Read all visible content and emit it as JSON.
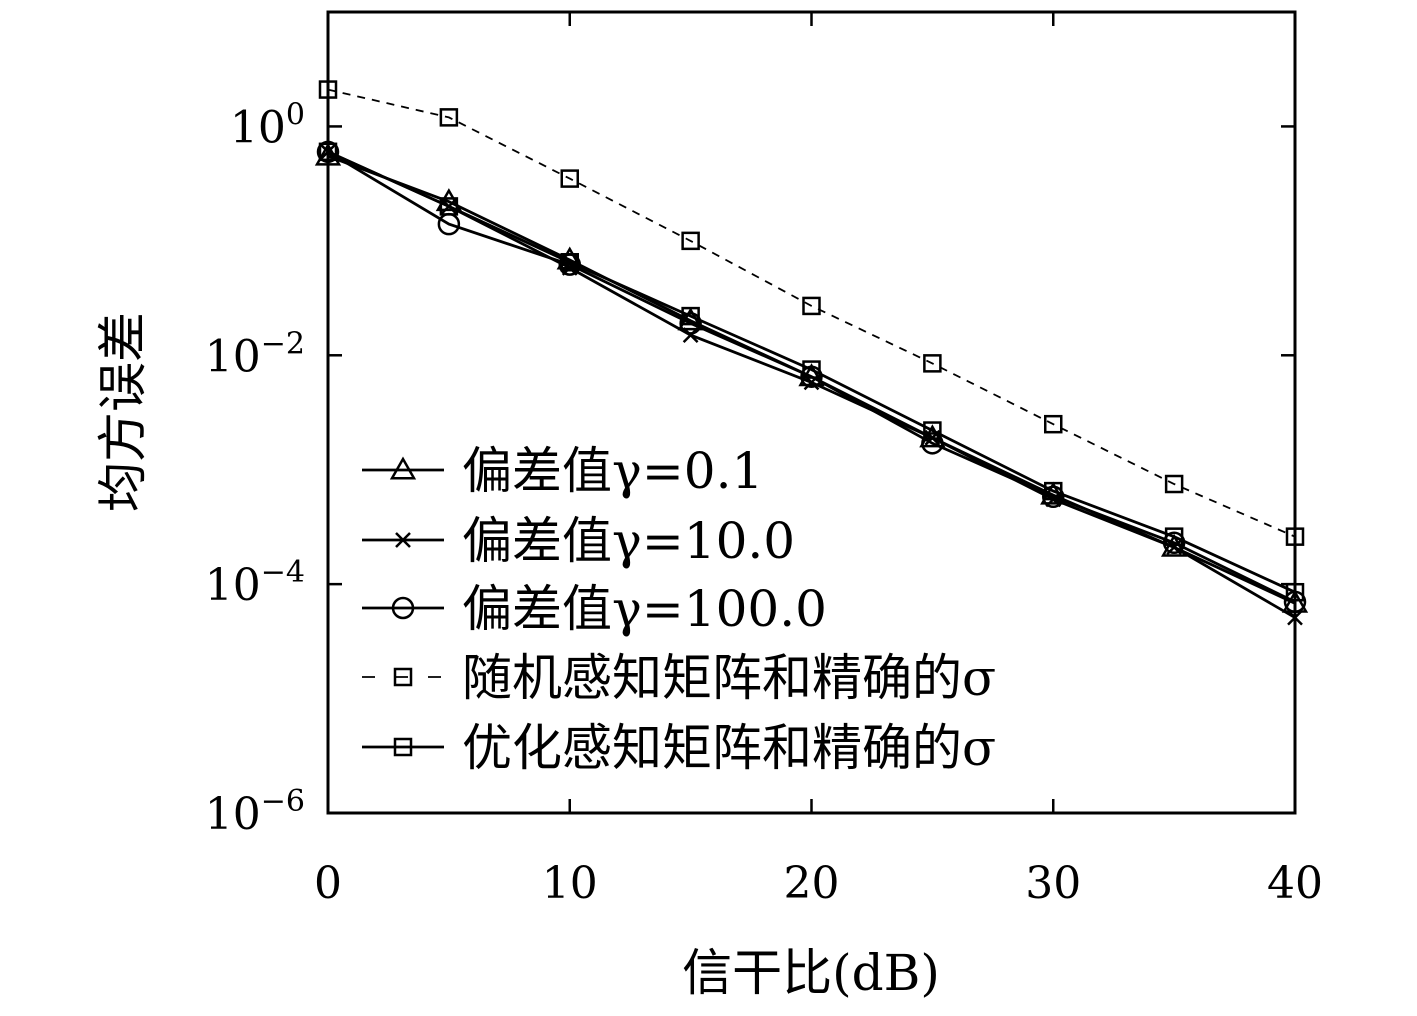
{
  "chart_data": {
    "type": "line",
    "xlabel": "信干比(dB)",
    "ylabel": "均方误差",
    "y_scale": "log",
    "xlim": [
      0,
      40
    ],
    "ylim": [
      1e-06,
      10
    ],
    "x_ticks": [
      {
        "value": 0,
        "label": "0"
      },
      {
        "value": 10,
        "label": "10"
      },
      {
        "value": 20,
        "label": "20"
      },
      {
        "value": 30,
        "label": "30"
      },
      {
        "value": 40,
        "label": "40"
      }
    ],
    "y_ticks": [
      {
        "value": 1,
        "base": "10",
        "exp": "0"
      },
      {
        "value": 0.01,
        "base": "10",
        "exp": "−2"
      },
      {
        "value": 0.0001,
        "base": "10",
        "exp": "−4"
      },
      {
        "value": 1e-06,
        "base": "10",
        "exp": "−6"
      }
    ],
    "grid": false,
    "legend_position": "bottom-left",
    "x": [
      0,
      5,
      10,
      15,
      20,
      25,
      30,
      35,
      40
    ],
    "series": [
      {
        "name": "偏差值γ=0.1",
        "marker": "triangle",
        "line_style": "solid",
        "values": [
          0.55,
          0.22,
          0.068,
          0.02,
          0.0065,
          0.0019,
          0.0006,
          0.00021,
          6.8e-05
        ]
      },
      {
        "name": "偏差值γ=10.0",
        "marker": "x",
        "line_style": "solid",
        "values": [
          0.6,
          0.2,
          0.058,
          0.015,
          0.0058,
          0.0019,
          0.00055,
          0.00021,
          5.1e-05
        ]
      },
      {
        "name": "偏差值γ=100.0",
        "marker": "circle",
        "line_style": "solid",
        "values": [
          0.6,
          0.14,
          0.062,
          0.019,
          0.0065,
          0.0017,
          0.00058,
          0.00023,
          7e-05
        ]
      },
      {
        "name": "随机感知矩阵和精确的σ",
        "marker": "square",
        "line_style": "dashed",
        "values": [
          2.1,
          1.2,
          0.35,
          0.1,
          0.027,
          0.0085,
          0.0025,
          0.00075,
          0.00026
        ]
      },
      {
        "name": "优化感知矩阵和精确的σ",
        "marker": "square",
        "line_style": "solid",
        "values": [
          0.6,
          0.2,
          0.065,
          0.022,
          0.0075,
          0.0022,
          0.00065,
          0.00026,
          8.5e-05
        ]
      }
    ]
  }
}
